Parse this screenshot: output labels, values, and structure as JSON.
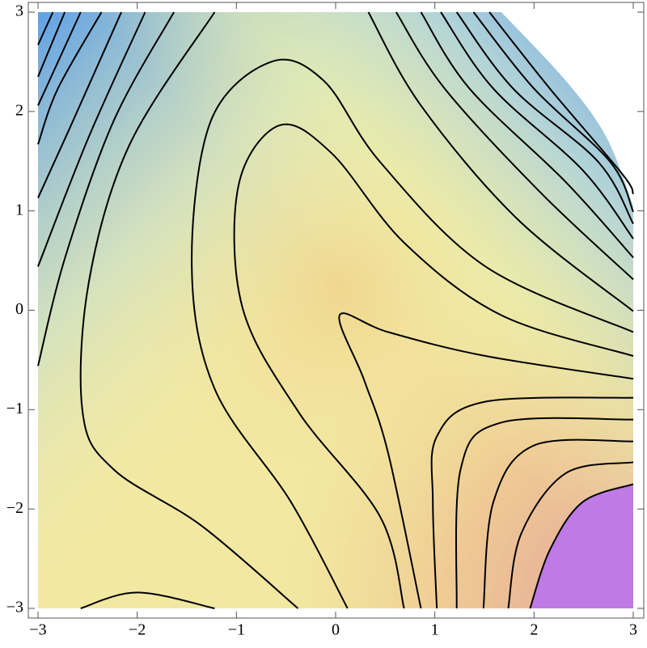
{
  "chart_data": {
    "type": "contour",
    "xlim": [
      -3,
      3
    ],
    "ylim": [
      -3,
      3
    ],
    "xticks": [
      {
        "value": -3,
        "label": "−3"
      },
      {
        "value": -2,
        "label": "−2"
      },
      {
        "value": -1,
        "label": "−1"
      },
      0,
      1,
      2,
      3
    ],
    "yticks": [
      {
        "value": -3,
        "label": "−3"
      },
      {
        "value": -2,
        "label": "−2"
      },
      {
        "value": -1,
        "label": "−1"
      },
      0,
      1,
      2,
      3
    ],
    "line_color": "#000000",
    "contours": [
      {
        "x": [
          -2.85,
          -3
        ],
        "y": [
          3,
          2.67
        ]
      },
      {
        "x": [
          -2.73,
          -3
        ],
        "y": [
          3,
          2.35
        ]
      },
      {
        "x": [
          -2.57,
          -3
        ],
        "y": [
          3,
          2.06
        ]
      },
      {
        "x": [
          -2.36,
          -2.8,
          -3
        ],
        "y": [
          3,
          2.23,
          1.67
        ]
      },
      {
        "x": [
          -2.16,
          -2.65,
          -3
        ],
        "y": [
          3,
          1.9,
          1.13
        ]
      },
      {
        "x": [
          -1.92,
          -2.49,
          -3
        ],
        "y": [
          3,
          1.74,
          0.44
        ]
      },
      {
        "x": [
          -1.63,
          -2.24,
          -2.73,
          -3
        ],
        "y": [
          3,
          1.9,
          0.52,
          -0.56
        ]
      },
      {
        "x": [
          -1.22,
          -2.08,
          -2.49,
          -2.55,
          -2.24,
          -1.35,
          -0.38
        ],
        "y": [
          3,
          1.66,
          0.27,
          -1.03,
          -1.6,
          -2.17,
          -3
        ]
      },
      {
        "x": [
          -2.57,
          -2.0,
          -1.22
        ],
        "y": [
          -3,
          -2.84,
          -3
        ]
      },
      {
        "x": [
          3,
          1.51,
          0.45,
          -0.12,
          -0.65,
          -1.26,
          -1.45,
          -1.22,
          -0.45,
          0.12
        ],
        "y": [
          -0.22,
          0.44,
          1.49,
          2.31,
          2.5,
          1.9,
          0.44,
          -0.79,
          -1.93,
          -3
        ]
      },
      {
        "x": [
          3,
          1.67,
          0.69,
          -0.04,
          -0.57,
          -0.98,
          -0.94,
          -0.37,
          0.45,
          0.69
        ],
        "y": [
          -0.46,
          -0.05,
          0.68,
          1.58,
          1.86,
          1.25,
          0.03,
          -1.03,
          -2.08,
          -3
        ]
      },
      {
        "x": [
          3,
          1.51,
          0.53,
          0.04,
          0.29,
          0.53,
          0.86
        ],
        "y": [
          -0.69,
          -0.46,
          -0.22,
          -0.05,
          -0.71,
          -1.44,
          -3
        ]
      },
      {
        "x": [
          3,
          1.51,
          1.02,
          0.98,
          1.02
        ],
        "y": [
          -0.88,
          -0.92,
          -1.27,
          -1.93,
          -3
        ]
      },
      {
        "x": [
          3,
          1.67,
          1.26,
          1.22
        ],
        "y": [
          -1.1,
          -1.13,
          -1.6,
          -3
        ]
      },
      {
        "x": [
          3,
          2.0,
          1.59,
          1.49
        ],
        "y": [
          -1.32,
          -1.36,
          -1.93,
          -3
        ]
      },
      {
        "x": [
          3,
          2.32,
          1.87,
          1.74
        ],
        "y": [
          -1.53,
          -1.64,
          -2.25,
          -3
        ]
      },
      {
        "x": [
          3,
          2.49,
          2.16,
          1.96
        ],
        "y": [
          -1.75,
          -1.93,
          -2.41,
          -3
        ]
      },
      {
        "x": [
          0.33,
          0.86,
          1.83,
          3
        ],
        "y": [
          3,
          2.06,
          0.92,
          -0.01
        ]
      },
      {
        "x": [
          0.61,
          1.1,
          2.08,
          3
        ],
        "y": [
          3,
          2.23,
          1.17,
          0.31
        ]
      },
      {
        "x": [
          0.86,
          1.35,
          2.32,
          3
        ],
        "y": [
          3,
          2.23,
          1.29,
          0.53
        ]
      },
      {
        "x": [
          1.06,
          1.59,
          2.49,
          3
        ],
        "y": [
          3,
          2.23,
          1.41,
          0.72
        ]
      },
      {
        "x": [
          1.22,
          1.79,
          2.65,
          3
        ],
        "y": [
          3,
          2.23,
          1.49,
          0.87
        ]
      },
      {
        "x": [
          1.39,
          2.0,
          2.77,
          3
        ],
        "y": [
          3,
          2.23,
          1.49,
          0.99
        ]
      },
      {
        "x": [
          1.55,
          2.16,
          2.89,
          3
        ],
        "y": [
          3,
          2.23,
          1.37,
          1.17
        ]
      }
    ],
    "clip_boundary": {
      "x": [
        1.67,
        2.32,
        2.73,
        3
      ],
      "y": [
        3,
        2.31,
        1.74,
        1.05
      ]
    }
  }
}
